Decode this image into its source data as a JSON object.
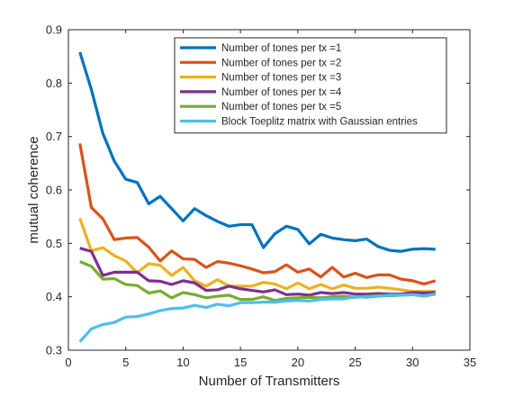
{
  "chart_data": {
    "type": "line",
    "title": "",
    "xlabel": "Number of Transmitters",
    "ylabel": "mutual coherence",
    "xlim": [
      0,
      35
    ],
    "ylim": [
      0.3,
      0.9
    ],
    "xticks": [
      0,
      5,
      10,
      15,
      20,
      25,
      30,
      35
    ],
    "yticks": [
      0.3,
      0.4,
      0.5,
      0.6,
      0.7,
      0.8,
      0.9
    ],
    "grid": false,
    "legend_position": "top-right",
    "x": [
      1,
      2,
      3,
      4,
      5,
      6,
      7,
      8,
      9,
      10,
      11,
      12,
      13,
      14,
      15,
      16,
      17,
      18,
      19,
      20,
      21,
      22,
      23,
      24,
      25,
      26,
      27,
      28,
      29,
      30,
      31,
      32
    ],
    "series": [
      {
        "name": "Number of tones per tx =1",
        "color": "#0072BD",
        "values": [
          0.858,
          0.788,
          0.706,
          0.654,
          0.62,
          0.614,
          0.574,
          0.588,
          0.565,
          0.542,
          0.565,
          0.552,
          0.541,
          0.532,
          0.535,
          0.535,
          0.492,
          0.518,
          0.532,
          0.526,
          0.499,
          0.517,
          0.51,
          0.507,
          0.505,
          0.508,
          0.494,
          0.487,
          0.485,
          0.489,
          0.49,
          0.489
        ]
      },
      {
        "name": "Number of tones per tx =2",
        "color": "#D95319",
        "values": [
          0.687,
          0.567,
          0.546,
          0.507,
          0.51,
          0.511,
          0.493,
          0.467,
          0.486,
          0.471,
          0.47,
          0.455,
          0.466,
          0.463,
          0.458,
          0.452,
          0.445,
          0.447,
          0.46,
          0.446,
          0.452,
          0.437,
          0.455,
          0.437,
          0.444,
          0.436,
          0.441,
          0.441,
          0.433,
          0.43,
          0.424,
          0.43
        ]
      },
      {
        "name": "Number of tones per tx =3",
        "color": "#EDB120",
        "values": [
          0.547,
          0.486,
          0.492,
          0.477,
          0.467,
          0.445,
          0.462,
          0.459,
          0.44,
          0.455,
          0.43,
          0.42,
          0.432,
          0.42,
          0.42,
          0.42,
          0.427,
          0.424,
          0.415,
          0.426,
          0.415,
          0.423,
          0.415,
          0.422,
          0.416,
          0.416,
          0.418,
          0.416,
          0.413,
          0.41,
          0.41,
          0.41
        ]
      },
      {
        "name": "Number of tones per tx =4",
        "color": "#7E2F8E",
        "values": [
          0.491,
          0.485,
          0.44,
          0.446,
          0.446,
          0.446,
          0.43,
          0.429,
          0.423,
          0.43,
          0.426,
          0.412,
          0.413,
          0.42,
          0.415,
          0.412,
          0.409,
          0.413,
          0.404,
          0.405,
          0.403,
          0.408,
          0.406,
          0.408,
          0.405,
          0.405,
          0.406,
          0.405,
          0.405,
          0.408,
          0.407,
          0.408
        ]
      },
      {
        "name": "Number of tones per tx =5",
        "color": "#77AC30",
        "values": [
          0.466,
          0.457,
          0.433,
          0.434,
          0.423,
          0.421,
          0.407,
          0.411,
          0.398,
          0.408,
          0.404,
          0.398,
          0.401,
          0.403,
          0.395,
          0.395,
          0.4,
          0.393,
          0.397,
          0.398,
          0.399,
          0.398,
          0.4,
          0.401,
          0.399,
          0.401,
          0.402,
          0.402,
          0.403,
          0.404,
          0.401,
          0.405
        ]
      },
      {
        "name": "Block Toeplitz matrix with Gaussian entries",
        "color": "#4DBEEE",
        "values": [
          0.316,
          0.34,
          0.348,
          0.352,
          0.362,
          0.363,
          0.368,
          0.374,
          0.378,
          0.379,
          0.384,
          0.38,
          0.386,
          0.383,
          0.389,
          0.389,
          0.39,
          0.39,
          0.392,
          0.393,
          0.392,
          0.395,
          0.396,
          0.396,
          0.4,
          0.399,
          0.401,
          0.403,
          0.403,
          0.404,
          0.402,
          0.405
        ]
      }
    ]
  }
}
